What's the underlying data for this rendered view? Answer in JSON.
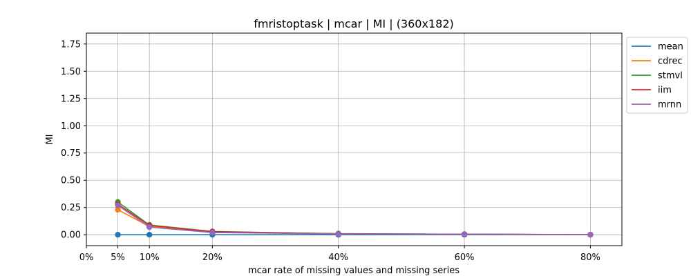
{
  "chart_data": {
    "type": "line",
    "title": "fmristoptask | mcar | MI | (360x182)",
    "xlabel": "mcar rate of missing values and missing series",
    "ylabel": "MI",
    "x": [
      5,
      10,
      20,
      40,
      60,
      80
    ],
    "xticks": [
      0,
      5,
      10,
      20,
      40,
      60,
      80
    ],
    "xtick_labels": [
      "0%",
      "5%",
      "10%",
      "20%",
      "40%",
      "60%",
      "80%"
    ],
    "xlim": [
      0,
      85
    ],
    "yticks": [
      0.0,
      0.25,
      0.5,
      0.75,
      1.0,
      1.25,
      1.5,
      1.75
    ],
    "ytick_labels": [
      "0.00",
      "0.25",
      "0.50",
      "0.75",
      "1.00",
      "1.25",
      "1.50",
      "1.75"
    ],
    "ylim": [
      -0.1,
      1.85
    ],
    "grid": true,
    "legend_position": "outside top-right",
    "series": [
      {
        "name": "mean",
        "color": "#1f77b4",
        "values": [
          0.0,
          0.0,
          0.0,
          0.0,
          0.0,
          0.0
        ]
      },
      {
        "name": "cdrec",
        "color": "#ff7f0e",
        "values": [
          0.23,
          0.075,
          0.025,
          0.008,
          0.004,
          0.001
        ]
      },
      {
        "name": "stmvl",
        "color": "#2ca02c",
        "values": [
          0.3,
          0.09,
          0.03,
          0.01,
          0.005,
          0.001
        ]
      },
      {
        "name": "iim",
        "color": "#d62728",
        "values": [
          0.28,
          0.085,
          0.028,
          0.009,
          0.005,
          0.001
        ]
      },
      {
        "name": "mrnn",
        "color": "#9467bd",
        "values": [
          0.27,
          0.07,
          0.02,
          0.007,
          0.004,
          0.001
        ]
      }
    ]
  }
}
